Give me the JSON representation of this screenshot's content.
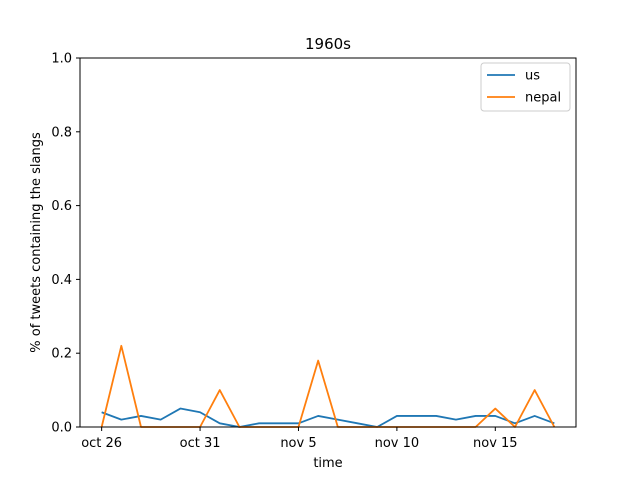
{
  "chart_data": {
    "type": "line",
    "title": "1960s",
    "xlabel": "time",
    "ylabel": "% of tweets containing the slangs",
    "ylim": [
      0,
      1.0
    ],
    "yticks": [
      "0.0",
      "0.2",
      "0.4",
      "0.6",
      "0.8",
      "1.0"
    ],
    "xticks": [
      {
        "day": 0,
        "label": "oct 26"
      },
      {
        "day": 5,
        "label": "oct 31"
      },
      {
        "day": 10,
        "label": "nov 5"
      },
      {
        "day": 15,
        "label": "nov 10"
      },
      {
        "day": 20,
        "label": "nov 15"
      }
    ],
    "xlim": [
      -1.1,
      24.1
    ],
    "x": [
      0,
      1,
      2,
      3,
      4,
      5,
      6,
      7,
      8,
      9,
      10,
      11,
      12,
      13,
      14,
      15,
      16,
      17,
      18,
      19,
      20,
      21,
      22,
      23
    ],
    "series": [
      {
        "name": "us",
        "color": "#1f77b4",
        "values": [
          0.04,
          0.02,
          0.03,
          0.02,
          0.05,
          0.04,
          0.01,
          0.0,
          0.01,
          0.01,
          0.01,
          0.03,
          0.02,
          0.01,
          0.0,
          0.03,
          0.03,
          0.03,
          0.02,
          0.03,
          0.03,
          0.01,
          0.03,
          0.01
        ]
      },
      {
        "name": "nepal",
        "color": "#ff7f0e",
        "values": [
          0.0,
          0.22,
          0.0,
          0.0,
          0.0,
          0.0,
          0.1,
          0.0,
          0.0,
          0.0,
          0.0,
          0.18,
          0.0,
          0.0,
          0.0,
          0.0,
          0.0,
          0.0,
          0.0,
          0.0,
          0.05,
          0.0,
          0.1,
          0.0
        ]
      }
    ],
    "legend_position": "top-right",
    "grid": false
  }
}
